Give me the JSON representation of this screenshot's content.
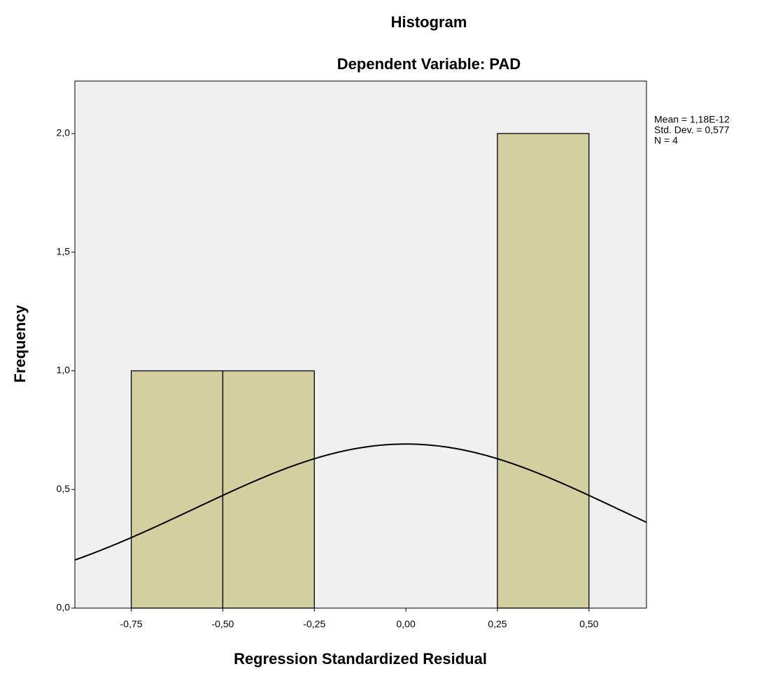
{
  "chart_data": {
    "type": "histogram",
    "title": "Histogram",
    "subtitle": "Dependent Variable: PAD",
    "x_label": "Regression Standardized Residual",
    "y_label": "Frequency",
    "bins": [
      -0.75,
      -0.5,
      -0.25,
      0,
      0.25,
      0.5
    ],
    "values": [
      1,
      1,
      0,
      0,
      2
    ],
    "color": "#cfc98f",
    "xlim": [
      -0.904,
      0.657
    ],
    "ylim": [
      0,
      2.221
    ],
    "xticks": [
      {
        "value": -0.75,
        "label": "-0,75"
      },
      {
        "value": -0.5,
        "label": "-0,50"
      },
      {
        "value": -0.25,
        "label": "-0,25"
      },
      {
        "value": 0,
        "label": "0,00"
      },
      {
        "value": 0.25,
        "label": "0,25"
      },
      {
        "value": 0.5,
        "label": "0,50"
      }
    ],
    "yticks": [
      {
        "value": 0,
        "label": "0,0"
      },
      {
        "value": 0.5,
        "label": "0,5"
      },
      {
        "value": 1,
        "label": "1,0"
      },
      {
        "value": 1.5,
        "label": "1,5"
      },
      {
        "value": 2,
        "label": "2,0"
      }
    ],
    "normal_curve": true,
    "stats": [
      {
        "value": 1.18e-12,
        "label": "Mean = 1,18E-12"
      },
      {
        "value": 0.577,
        "label": "Std. Dev. = 0,577"
      },
      {
        "value": 4,
        "label": "N = 4"
      }
    ]
  }
}
